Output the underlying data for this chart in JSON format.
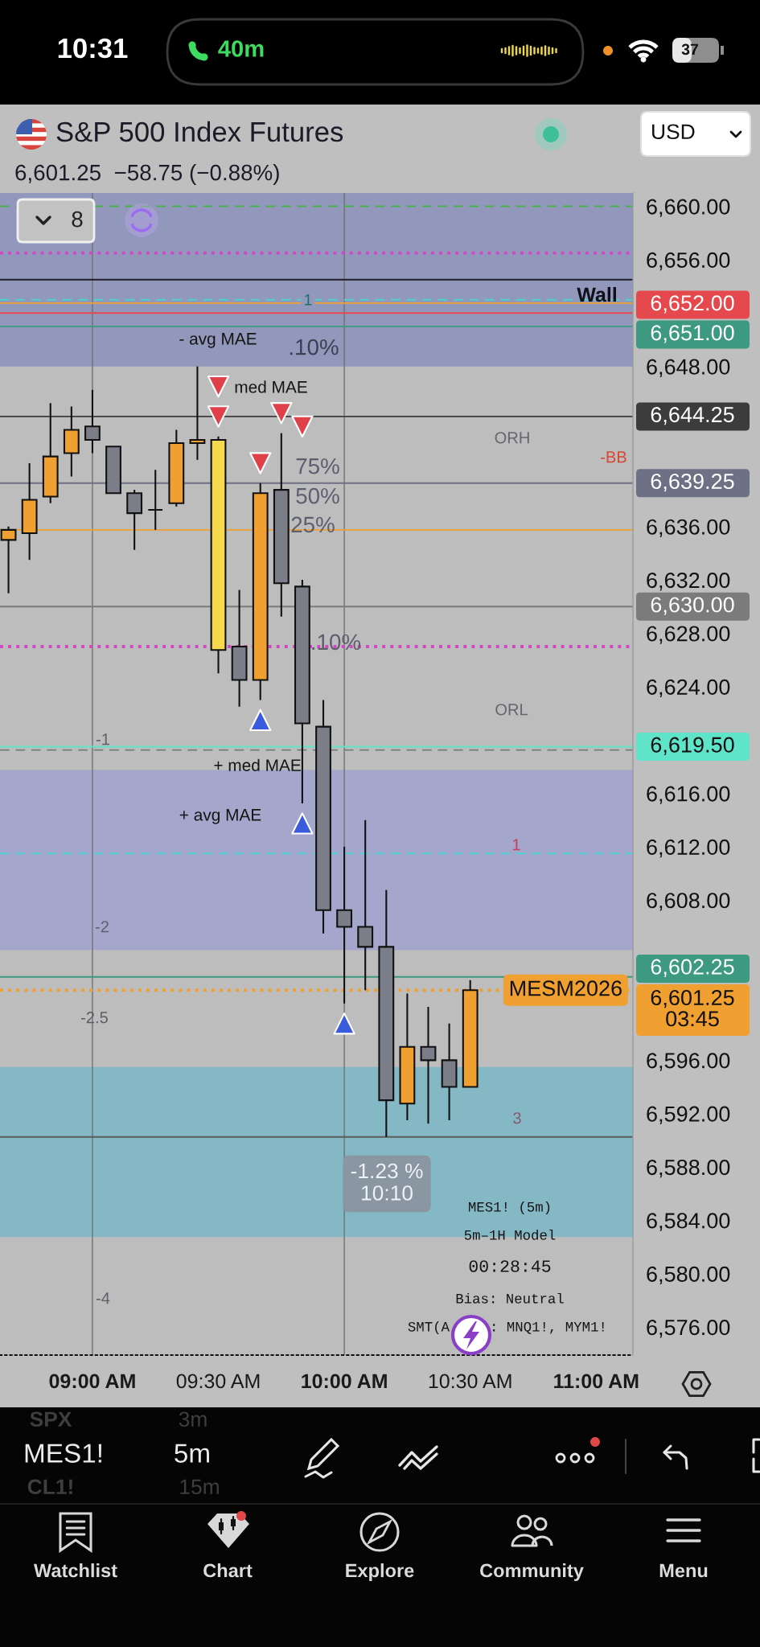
{
  "chart_data": {
    "type": "candlestick",
    "title": "S&P 500 Index Futures",
    "subtitle": "6,601.25  −58.75 (−0.88%)",
    "x": [
      8.6667,
      8.75,
      8.8333,
      8.9167,
      9.0,
      9.0833,
      9.1667,
      9.25,
      9.3333,
      9.4167,
      9.5,
      9.5833,
      9.6667,
      9.75,
      9.8333,
      9.9167,
      10.0,
      10.0833,
      10.1667,
      10.25,
      10.3333,
      10.4167,
      10.5
    ],
    "ohlc": [
      [
        6635.0,
        6636.0,
        6631.0,
        6635.75
      ],
      [
        6635.5,
        6640.75,
        6633.5,
        6638.0
      ],
      [
        6638.25,
        6645.25,
        6637.75,
        6641.25
      ],
      [
        6641.5,
        6645.0,
        6639.75,
        6643.25
      ],
      [
        6643.5,
        6646.25,
        6641.5,
        6642.5
      ],
      [
        6642.0,
        6642.0,
        6638.5,
        6638.5
      ],
      [
        6638.5,
        6638.75,
        6634.25,
        6637.0
      ],
      [
        6637.25,
        6640.25,
        6635.75,
        6637.25
      ],
      [
        6637.75,
        6643.25,
        6637.5,
        6642.25
      ],
      [
        6642.25,
        6648.0,
        6641.0,
        6642.5
      ],
      [
        6642.5,
        6642.75,
        6625.0,
        6626.75
      ],
      [
        6627.0,
        6631.25,
        6622.5,
        6624.5
      ],
      [
        6624.5,
        6639.25,
        6623.0,
        6638.5
      ],
      [
        6638.75,
        6643.0,
        6629.25,
        6631.75
      ],
      [
        6631.5,
        6632.0,
        6615.25,
        6621.25
      ],
      [
        6621.0,
        6623.0,
        6605.5,
        6607.25
      ],
      [
        6607.25,
        6612.0,
        6600.25,
        6606.0
      ],
      [
        6606.0,
        6614.0,
        6601.25,
        6604.5
      ],
      [
        6604.5,
        6608.75,
        6590.25,
        6593.0
      ],
      [
        6592.75,
        6601.0,
        6591.5,
        6597.0
      ],
      [
        6597.0,
        6600.0,
        6591.25,
        6596.0
      ],
      [
        6596.0,
        6598.75,
        6591.5,
        6594.0
      ],
      [
        6594.0,
        6602.0,
        6594.0,
        6601.25
      ]
    ],
    "colors": [
      "#f0a030",
      "#f0a030",
      "#f0a030",
      "#f0a030",
      "#7b7d88",
      "#7b7d88",
      "#7b7d88",
      "#111111",
      "#f0a030",
      "#f0a030",
      "#f6d94e",
      "#7b7d88",
      "#f0a030",
      "#7b7d88",
      "#7b7d88",
      "#7b7d88",
      "#7b7d88",
      "#7b7d88",
      "#7b7d88",
      "#f0a030",
      "#7b7d88",
      "#7b7d88",
      "#f0a030"
    ],
    "xlim": [
      8.633,
      11.146
    ],
    "xticks": [
      {
        "value": 9,
        "label": "09:00 AM"
      },
      {
        "value": 9.5,
        "label": "09:30 AM"
      },
      {
        "value": 10,
        "label": "10:00 AM"
      },
      {
        "value": 10.5,
        "label": "10:30 AM"
      },
      {
        "value": 11,
        "label": "11:00 AM"
      }
    ],
    "ylim": [
      6573.9,
      6661.0
    ],
    "yticks": [
      {
        "value": 6660,
        "label": "6,660.00"
      },
      {
        "value": 6656,
        "label": "6,656.00"
      },
      {
        "value": 6648,
        "label": "6,648.00"
      },
      {
        "value": 6636,
        "label": "6,636.00"
      },
      {
        "value": 6632,
        "label": "6,632.00"
      },
      {
        "value": 6628,
        "label": "6,628.00"
      },
      {
        "value": 6624,
        "label": "6,624.00"
      },
      {
        "value": 6616,
        "label": "6,616.00"
      },
      {
        "value": 6612,
        "label": "6,612.00"
      },
      {
        "value": 6608,
        "label": "6,608.00"
      },
      {
        "value": 6596,
        "label": "6,596.00"
      },
      {
        "value": 6592,
        "label": "6,592.00"
      },
      {
        "value": 6588,
        "label": "6,588.00"
      },
      {
        "value": 6584,
        "label": "6,584.00"
      },
      {
        "value": 6580,
        "label": "6,580.00"
      },
      {
        "value": 6576,
        "label": "6,576.00"
      }
    ],
    "series": [
      {
        "type": "scatter",
        "color": "#e0404a",
        "marker": "triangle",
        "x": [
          9.5,
          9.5,
          9.6667,
          9.75,
          9.8333
        ],
        "values": [
          6646.5,
          6644.25,
          6640.75,
          6644.5,
          6643.5
        ]
      },
      {
        "type": "scatter",
        "color": "#3a5bdc",
        "marker": "triangle",
        "x": [
          9.6667,
          9.8333,
          10.0
        ],
        "values": [
          6621.5,
          6613.75,
          6598.75
        ]
      }
    ],
    "bands": [
      {
        "axis": "y",
        "from": 6648,
        "to": 6661,
        "color": "#9298bb"
      },
      {
        "axis": "y",
        "from": 6604.25,
        "to": 6617.75,
        "color": "#a4a7cb"
      },
      {
        "axis": "y",
        "from": 6582.75,
        "to": 6595.5,
        "color": "#84b8c5"
      }
    ],
    "ref_lines": [
      {
        "axis": "x",
        "value": 9,
        "color": "#707070"
      },
      {
        "axis": "x",
        "value": 10,
        "color": "#707070"
      },
      {
        "axis": "y",
        "value": 6660,
        "color": "#4caf50",
        "line_style": "dashed"
      },
      {
        "axis": "y",
        "value": 6656.5,
        "color": "#d446c6",
        "line_style": "dotted"
      },
      {
        "axis": "y",
        "value": 6654.5,
        "color": "#1c1c2a"
      },
      {
        "axis": "y",
        "value": 6653.0,
        "color": "#4fd1c5",
        "line_style": "dashed"
      },
      {
        "axis": "y",
        "value": 6652.75,
        "color": "#f0a030"
      },
      {
        "axis": "y",
        "value": 6652,
        "color": "#e5484d",
        "label": "6,652.00"
      },
      {
        "axis": "y",
        "value": 6651,
        "color": "#3d9a80",
        "label": "6,651.00"
      },
      {
        "axis": "y",
        "value": 6644.25,
        "color": "#3c3c3c",
        "label": "6,644.25"
      },
      {
        "axis": "y",
        "value": 6639.25,
        "color": "#6e7185",
        "label": "6,639.25"
      },
      {
        "axis": "y",
        "value": 6635.75,
        "color": "#f0a030"
      },
      {
        "axis": "y",
        "value": 6630,
        "color": "#7b7b7b",
        "label": "6,630.00"
      },
      {
        "axis": "y",
        "value": 6627,
        "color": "#d446c6",
        "line_style": "dotted"
      },
      {
        "axis": "y",
        "value": 6619.5,
        "color": "#5fe3c9",
        "label": "6,619.50"
      },
      {
        "axis": "y",
        "value": 6619.25,
        "color": "#7a7a7a",
        "line_style": "dashed"
      },
      {
        "axis": "y",
        "value": 6611.5,
        "color": "#4fd1d9",
        "line_style": "dashed"
      },
      {
        "axis": "y",
        "value": 6602.25,
        "color": "#3d9a80",
        "label": "6,602.25"
      },
      {
        "axis": "y",
        "value": 6601.25,
        "color": "#f0a030",
        "line_style": "dotted",
        "label": "6,601.25\n03:45"
      },
      {
        "axis": "y",
        "value": 6590.25,
        "color": "#5c5c5c"
      }
    ],
    "annotations": [
      "10:31",
      "40m",
      "37",
      "USD",
      "8",
      "MES1! (5m)",
      "5m–1H Model",
      "00:28:45",
      "Bias: Neutral",
      "SMT(A",
      ": MNQ1!, MYM1!",
      "SPX",
      "3m",
      "MES1!",
      "5m",
      "CL1!",
      "15m",
      "Watchlist",
      "Chart",
      "Explore",
      "Community",
      "Menu",
      "- avg MAE",
      "med MAE",
      ".10%",
      "75%",
      "50%",
      "ORH",
      "ORL",
      "-BB",
      "-1",
      "+ avg MAE",
      "1",
      "-2",
      "3",
      "-1.23 %\n10:10",
      "-4",
      {
        "text": "Wall",
        "x": 11.004,
        "y": 6653.25
      },
      {
        "text": "1",
        "x": 9.856,
        "y": 6652.9
      },
      {
        "text": "25%",
        "x": 9.875,
        "y": 6636.0
      },
      {
        "text": ".10%",
        "x": 9.966,
        "y": 6627.2
      },
      {
        "text": "+ med MAE",
        "x": 9.655,
        "y": 6618.0
      },
      {
        "text": "-2.5",
        "x": 9.008,
        "y": 6599.1
      },
      {
        "text": "MESM2026",
        "x": 10.879,
        "y": 6601.25
      }
    ]
  }
}
